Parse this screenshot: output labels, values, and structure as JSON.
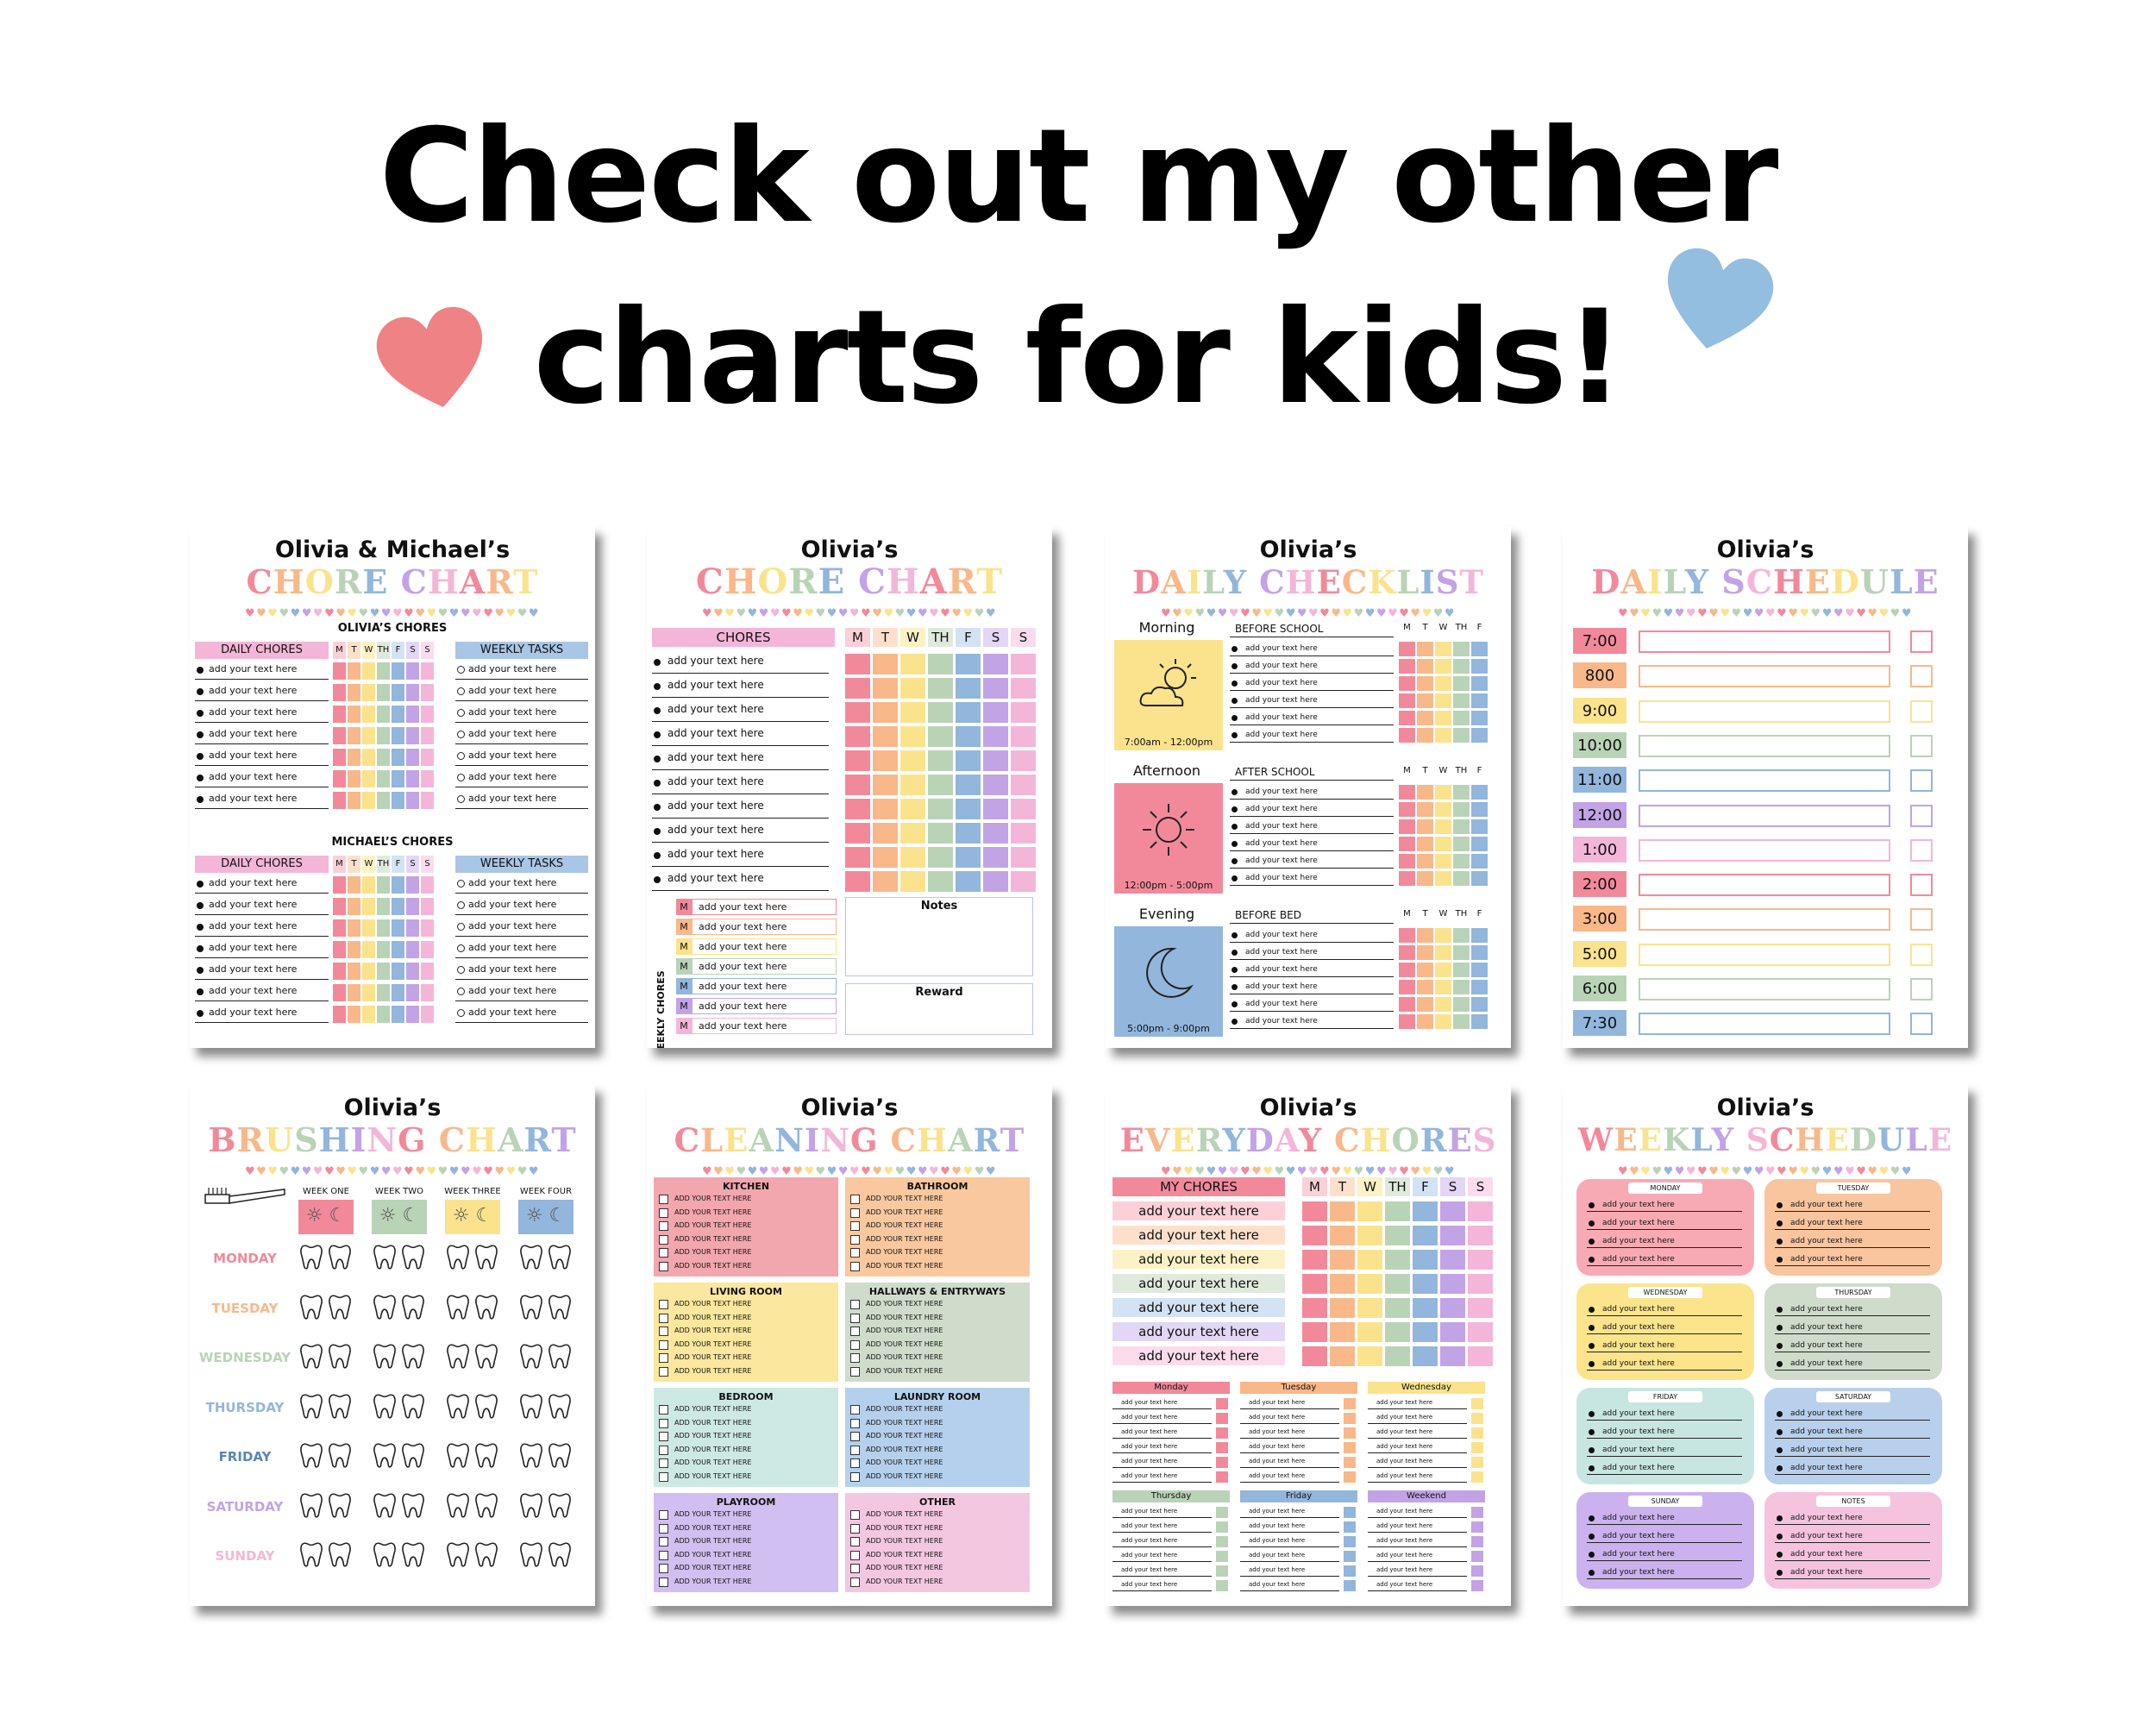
{
  "headline": {
    "line1": "Check out my other",
    "line2": "charts for kids!"
  },
  "colors": {
    "pink": "#f2899b",
    "orange": "#f8b88a",
    "yellow": "#fbe38d",
    "green": "#b9d3b7",
    "blue": "#92b6dc",
    "purple": "#c2a3e6",
    "lightpink": "#f4b6d8",
    "heartPink": "#ee8284",
    "heartBlue": "#93bedf"
  },
  "hearts": [
    "left-heart-icon",
    "right-heart-icon"
  ],
  "cards": {
    "c1": {
      "owner": "Olivia &  Michael’s",
      "title": "CHORE CHART",
      "section1": "OLIVIA’S CHORES",
      "section2": "MICHAEL’S CHORES",
      "col1": "DAILY CHORES",
      "col2": "WEEKLY TASKS",
      "days": [
        "M",
        "T",
        "W",
        "TH",
        "F",
        "S",
        "S"
      ],
      "row": "add your text here"
    },
    "c2": {
      "owner": "Olivia’s",
      "title": "CHORE CHART",
      "chores": "CHORES",
      "days": [
        "M",
        "T",
        "W",
        "TH",
        "F",
        "S",
        "S"
      ],
      "row": "add your text here",
      "weekly": "WEEKLY CHORES",
      "day": "M",
      "notes": "Notes",
      "reward": "Reward"
    },
    "c3": {
      "owner": "Olivia’s",
      "title": "DAILY CHECKLIST",
      "days": [
        "M",
        "T",
        "W",
        "TH",
        "F"
      ],
      "row": "add your text here",
      "blocks": [
        {
          "label": "Morning",
          "header": "BEFORE SCHOOL",
          "time": "7:00am - 12:00pm"
        },
        {
          "label": "Afternoon",
          "header": "AFTER SCHOOL",
          "time": "12:00pm - 5:00pm"
        },
        {
          "label": "Evening",
          "header": "BEFORE BED",
          "time": "5:00pm - 9:00pm"
        }
      ]
    },
    "c4": {
      "owner": "Olivia’s",
      "title": "DAILY SCHEDULE",
      "times": [
        "7:00",
        "800",
        "9:00",
        "10:00",
        "11:00",
        "12:00",
        "1:00",
        "2:00",
        "3:00",
        "5:00",
        "6:00",
        "7:30"
      ]
    },
    "c5": {
      "owner": "Olivia’s",
      "title": "BRUSHING CHART",
      "weeks": [
        "WEEK ONE",
        "WEEK TWO",
        "WEEK THREE",
        "WEEK FOUR"
      ],
      "days": [
        "MONDAY",
        "TUESDAY",
        "WEDNESDAY",
        "THURSDAY",
        "FRIDAY",
        "SATURDAY",
        "SUNDAY"
      ]
    },
    "c6": {
      "owner": "Olivia’s",
      "title": "CLEANING CHART",
      "rooms": [
        "KITCHEN",
        "BATHROOM",
        "LIVING ROOM",
        "HALLWAYS & ENTRYWAYS",
        "BEDROOM",
        "LAUNDRY ROOM",
        "PLAYROOM",
        "OTHER"
      ],
      "row": "ADD YOUR TEXT HERE"
    },
    "c7": {
      "owner": "Olivia’s",
      "title": "EVERYDAY CHORES",
      "mychores": "MY CHORES",
      "days": [
        "M",
        "T",
        "W",
        "TH",
        "F",
        "S",
        "S"
      ],
      "row": "add your text here",
      "small": [
        "Monday",
        "Tuesday",
        "Wednesday",
        "Thursday",
        "Friday",
        "Weekend"
      ]
    },
    "c8": {
      "owner": "Olivia’s",
      "title": "WEEKLY SCHEDULE",
      "days": [
        "MONDAY",
        "TUESDAY",
        "WEDNESDAY",
        "THURSDAY",
        "FRIDAY",
        "SATURDAY",
        "SUNDAY",
        "NOTES"
      ],
      "row": "add your text here"
    }
  }
}
